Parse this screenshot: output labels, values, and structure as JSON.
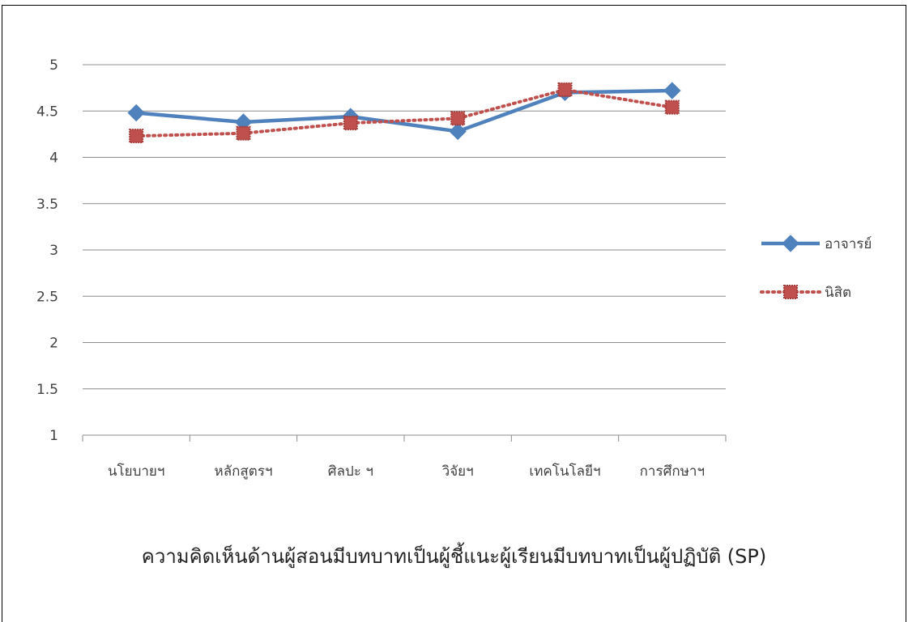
{
  "chart_data": {
    "type": "line",
    "title": "",
    "xlabel": "",
    "ylabel": "",
    "categories": [
      "นโยบายฯ",
      "หลักสูตรฯ",
      "ศิลปะ ฯ",
      "วิจัยฯ",
      "เทคโนโลยีฯ",
      "การศึกษาฯ"
    ],
    "ylim": [
      1,
      5
    ],
    "yticks": [
      "1",
      "1.5",
      "2",
      "2.5",
      "3",
      "3.5",
      "4",
      "4.5",
      "5"
    ],
    "grid": true,
    "legend_position": "right",
    "series": [
      {
        "name": "อาจารย์",
        "values": [
          4.48,
          4.38,
          4.44,
          4.28,
          4.7,
          4.72
        ],
        "color": "#4F81BD",
        "line_style": "solid",
        "marker": "diamond"
      },
      {
        "name": "นิสิต",
        "values": [
          4.23,
          4.26,
          4.37,
          4.42,
          4.73,
          4.54
        ],
        "color": "#C0504D",
        "line_style": "dotted",
        "marker": "square"
      }
    ]
  },
  "caption": "ความคิดเห็นด้านผู้สอนมีบทบาทเป็นผู้ชี้แนะผู้เรียนมีบทบาทเป็นผู้ปฏิบัติ (SP)"
}
